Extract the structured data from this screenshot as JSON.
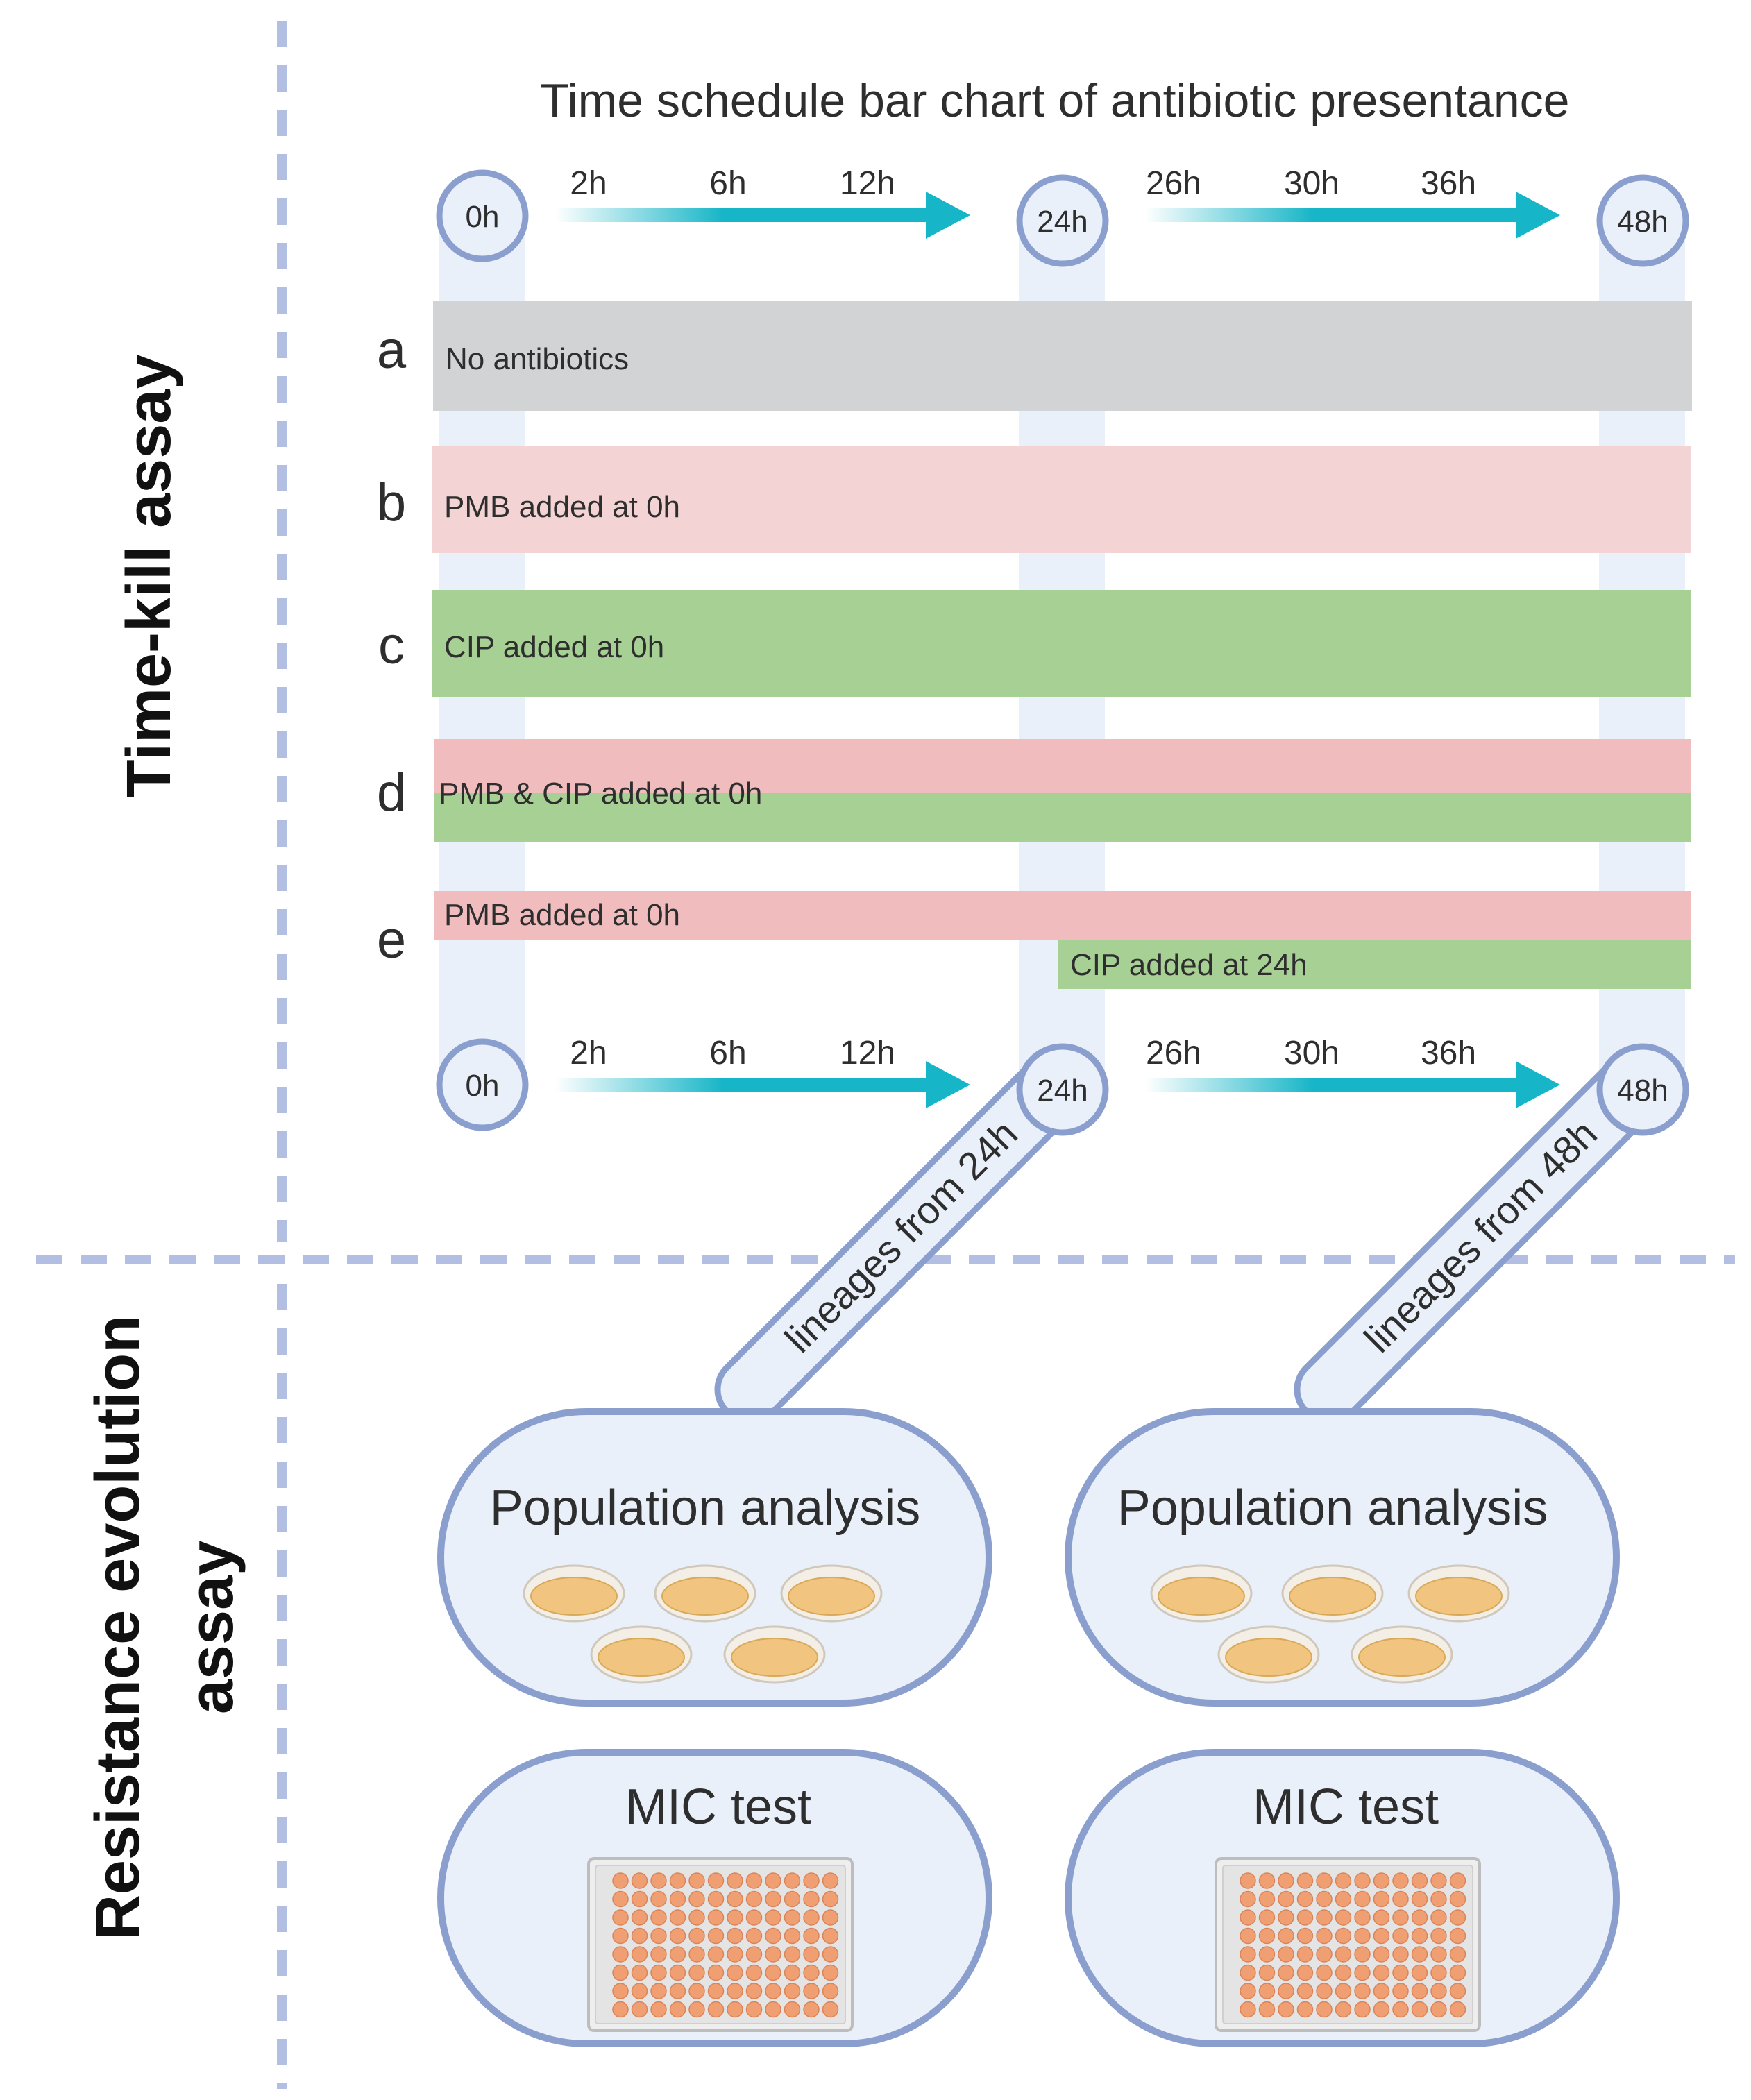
{
  "title": "Time schedule bar chart of antibiotic presentance",
  "sections": {
    "time_kill": "Time-kill assay",
    "resistance_line1": "Resistance evolution",
    "resistance_line2": "assay"
  },
  "milestones": {
    "h0": "0h",
    "h24": "24h",
    "h48": "48h"
  },
  "ticks_first": [
    "2h",
    "6h",
    "12h"
  ],
  "ticks_second": [
    "26h",
    "30h",
    "36h"
  ],
  "rows": [
    {
      "letter": "a",
      "label": "No antibiotics"
    },
    {
      "letter": "b",
      "label": "PMB added at 0h"
    },
    {
      "letter": "c",
      "label": "CIP added at 0h"
    },
    {
      "letter": "d",
      "label": "PMB & CIP added at 0h"
    },
    {
      "letter": "e",
      "label": "PMB added at 0h",
      "label2": "CIP added at 24h"
    }
  ],
  "lineage_24": "lineages from 24h",
  "lineage_48": "lineages from 48h",
  "population_label": "Population analysis",
  "mic_label": "MIC test",
  "colors": {
    "grey_bar": "#d2d3d5",
    "pmb_light": "#f4d3d5",
    "pmb": "#f0bcbd",
    "cip": "#a7d095",
    "arrow": "#16b5c7",
    "outline": "#8b9fcf",
    "fill": "#e9f0fa",
    "divider": "#b2bfe3",
    "plate": "#f1c47f",
    "well": "#ef9f72"
  }
}
